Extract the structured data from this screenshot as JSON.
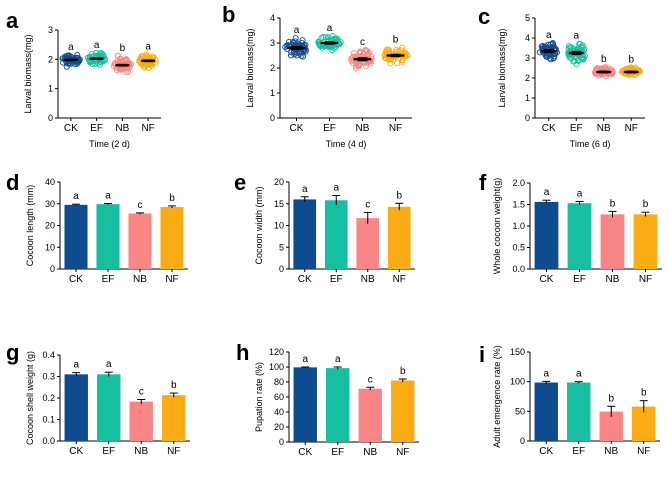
{
  "colors": {
    "CK": "#0f4c8f",
    "EF": "#16bfa0",
    "NB": "#f98684",
    "NF": "#fbab14"
  },
  "chart_data": [
    {
      "id": "a",
      "panel_letter": "a",
      "type": "scatter",
      "ylabel": "Larval biomass(mg)",
      "xlabel": "Time (2 d)",
      "ylim": [
        0,
        3
      ],
      "yticks": [
        0,
        1,
        2,
        3
      ],
      "categories": [
        "CK",
        "EF",
        "NB",
        "NF"
      ],
      "values": [
        1.98,
        2.02,
        1.8,
        1.95
      ],
      "errors": [
        0.03,
        0.03,
        0.03,
        0.03
      ],
      "spread": [
        0.3,
        0.3,
        0.35,
        0.28
      ],
      "letters": [
        "a",
        "a",
        "b",
        "a"
      ]
    },
    {
      "id": "b",
      "panel_letter": "b",
      "type": "scatter",
      "ylabel": "Larval biomass(mg)",
      "xlabel": "Time (4 d)",
      "ylim": [
        0,
        4
      ],
      "yticks": [
        0,
        1,
        2,
        3,
        4
      ],
      "categories": [
        "CK",
        "EF",
        "NB",
        "NF"
      ],
      "values": [
        2.8,
        3.0,
        2.35,
        2.5
      ],
      "errors": [
        0.06,
        0.05,
        0.06,
        0.05
      ],
      "spread": [
        0.45,
        0.35,
        0.55,
        0.45
      ],
      "letters": [
        "a",
        "a",
        "c",
        "b"
      ]
    },
    {
      "id": "c",
      "panel_letter": "c",
      "type": "scatter",
      "ylabel": "Larval biomass(mg)",
      "xlabel": "Time (6 d)",
      "ylim": [
        0,
        5
      ],
      "yticks": [
        0,
        1,
        2,
        3,
        4,
        5
      ],
      "categories": [
        "CK",
        "EF",
        "NB",
        "NF"
      ],
      "values": [
        3.35,
        3.25,
        2.3,
        2.3
      ],
      "errors": [
        0.08,
        0.08,
        0.05,
        0.05
      ],
      "spread": [
        0.6,
        0.7,
        0.35,
        0.3
      ],
      "letters": [
        "a",
        "a",
        "b",
        "b"
      ]
    },
    {
      "id": "d",
      "panel_letter": "d",
      "type": "bar",
      "ylabel": "Cocoon length (mm)",
      "xlabel": "",
      "ylim": [
        0,
        40
      ],
      "yticks": [
        0,
        10,
        20,
        30,
        40
      ],
      "categories": [
        "CK",
        "EF",
        "NB",
        "NF"
      ],
      "values": [
        29.5,
        29.8,
        25.5,
        28.5
      ],
      "errors": [
        0.3,
        0.3,
        0.3,
        0.5
      ],
      "letters": [
        "a",
        "a",
        "c",
        "b"
      ]
    },
    {
      "id": "e",
      "panel_letter": "e",
      "type": "bar",
      "ylabel": "Cocoon width (mm)",
      "xlabel": "",
      "ylim": [
        0,
        20
      ],
      "yticks": [
        0,
        5,
        10,
        15,
        20
      ],
      "categories": [
        "CK",
        "EF",
        "NB",
        "NF"
      ],
      "values": [
        16.0,
        15.8,
        11.7,
        14.3
      ],
      "errors": [
        0.6,
        1.1,
        1.3,
        0.8
      ],
      "letters": [
        "a",
        "a",
        "c",
        "b"
      ]
    },
    {
      "id": "f",
      "panel_letter": "f",
      "type": "bar",
      "ylabel": "Whole cocoon weight(g)",
      "xlabel": "",
      "ylim": [
        0,
        2.0
      ],
      "yticks": [
        0.0,
        0.5,
        1.0,
        1.5,
        2.0
      ],
      "categories": [
        "CK",
        "EF",
        "NB",
        "NF"
      ],
      "values": [
        1.56,
        1.53,
        1.27,
        1.27
      ],
      "errors": [
        0.04,
        0.04,
        0.07,
        0.05
      ],
      "letters": [
        "a",
        "a",
        "b",
        "b"
      ]
    },
    {
      "id": "g",
      "panel_letter": "g",
      "type": "bar",
      "ylabel": "Cocoon shell weight (g)",
      "xlabel": "",
      "ylim": [
        0,
        0.4
      ],
      "yticks": [
        0.0,
        0.1,
        0.2,
        0.3,
        0.4
      ],
      "categories": [
        "CK",
        "EF",
        "NB",
        "NF"
      ],
      "values": [
        0.31,
        0.31,
        0.183,
        0.213
      ],
      "errors": [
        0.008,
        0.01,
        0.01,
        0.01
      ],
      "letters": [
        "a",
        "a",
        "c",
        "b"
      ]
    },
    {
      "id": "h",
      "panel_letter": "h",
      "type": "bar",
      "ylabel": "Pupation rate  (%)",
      "xlabel": "",
      "ylim": [
        0,
        120
      ],
      "yticks": [
        0,
        20,
        40,
        60,
        80,
        100,
        120
      ],
      "categories": [
        "CK",
        "EF",
        "NB",
        "NF"
      ],
      "values": [
        99.5,
        98.5,
        71.0,
        82.0
      ],
      "errors": [
        0.5,
        1.5,
        2.0,
        2.0
      ],
      "letters": [
        "a",
        "a",
        "c",
        "b"
      ]
    },
    {
      "id": "i",
      "panel_letter": "i",
      "type": "bar",
      "ylabel": "Adult emergence rate  (%)",
      "xlabel": "",
      "ylim": [
        0,
        150
      ],
      "yticks": [
        0,
        50,
        100,
        150
      ],
      "categories": [
        "CK",
        "EF",
        "NB",
        "NF"
      ],
      "values": [
        98.5,
        98.5,
        49.5,
        58.0
      ],
      "errors": [
        2.0,
        1.5,
        9.0,
        10.0
      ],
      "letters": [
        "a",
        "a",
        "b",
        "b"
      ]
    }
  ]
}
